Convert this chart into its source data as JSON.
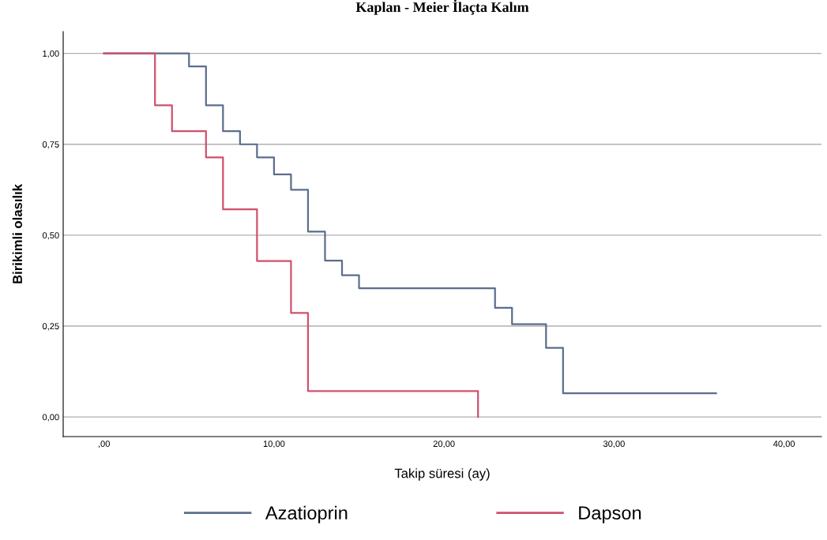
{
  "chart_data": {
    "type": "step",
    "title": "Kaplan - Meier İlaçta Kalım",
    "xlabel": "Takip süresi (ay)",
    "ylabel": "Birikimli olasılık",
    "xlim": [
      -2.4,
      42.2
    ],
    "ylim": [
      -0.054,
      1.06
    ],
    "xticks": [
      {
        "value": 0,
        "label": ",00"
      },
      {
        "value": 10,
        "label": "10,00"
      },
      {
        "value": 20,
        "label": "20,00"
      },
      {
        "value": 30,
        "label": "30,00"
      },
      {
        "value": 40,
        "label": "40,00"
      }
    ],
    "yticks": [
      {
        "value": 0,
        "label": "0,00"
      },
      {
        "value": 0.25,
        "label": "0,25"
      },
      {
        "value": 0.5,
        "label": "0,50"
      },
      {
        "value": 0.75,
        "label": "0,75"
      },
      {
        "value": 1,
        "label": "1,00"
      }
    ],
    "grid": "y",
    "legend": "bottom",
    "series": [
      {
        "name": "Azatioprin",
        "color": "#5a6e8c",
        "x": [
          0,
          5,
          6,
          7,
          8,
          9,
          10,
          11,
          12,
          13,
          14,
          15,
          23,
          24,
          26,
          27,
          36
        ],
        "values": [
          1,
          0.964,
          0.857,
          0.786,
          0.75,
          0.714,
          0.667,
          0.625,
          0.51,
          0.43,
          0.39,
          0.354,
          0.3,
          0.255,
          0.19,
          0.065,
          0.065
        ]
      },
      {
        "name": "Dapson",
        "color": "#d0506e",
        "x": [
          0,
          3,
          4,
          6,
          7,
          9,
          11,
          12,
          22
        ],
        "values": [
          1,
          0.857,
          0.786,
          0.714,
          0.571,
          0.429,
          0.286,
          0.071,
          0
        ]
      }
    ]
  }
}
